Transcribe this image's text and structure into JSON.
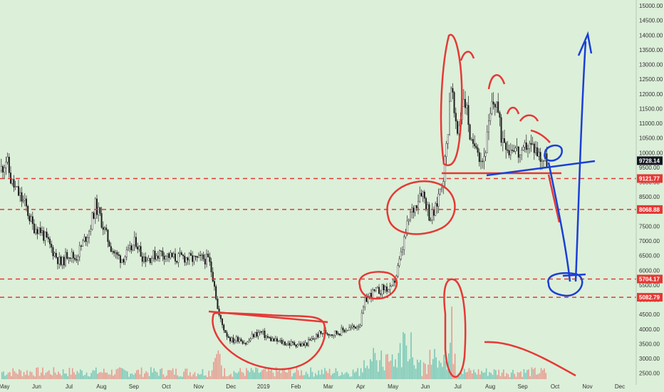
{
  "chart_data": {
    "type": "candlestick",
    "title": "",
    "xlabel": "",
    "ylabel": "",
    "ylim": [
      2200,
      15000
    ],
    "price_axis_ticks": [
      "15000.00",
      "14500.00",
      "14000.00",
      "13500.00",
      "13000.00",
      "12500.00",
      "12000.00",
      "11500.00",
      "11000.00",
      "10500.00",
      "10000.00",
      "9500.00",
      "9000.00",
      "8500.00",
      "8000.00",
      "7500.00",
      "7000.00",
      "6500.00",
      "6000.00",
      "5500.00",
      "5000.00",
      "4500.00",
      "4000.00",
      "3500.00",
      "3000.00",
      "2500.00"
    ],
    "time_axis_ticks": [
      "May",
      "Jun",
      "Jul",
      "Aug",
      "Sep",
      "Oct",
      "Nov",
      "Dec",
      "2019",
      "Feb",
      "Mar",
      "Apr",
      "May",
      "Jun",
      "Jul",
      "Aug",
      "Sep",
      "Oct",
      "Nov",
      "Dec"
    ],
    "current_price": {
      "label": "9728.14",
      "value": 9728.14,
      "color": "#131722"
    },
    "horizontal_levels": [
      {
        "label": "9121.77",
        "value": 9121.77,
        "color": "#e53935"
      },
      {
        "label": "8068.88",
        "value": 8068.88,
        "color": "#e53935"
      },
      {
        "label": "5704.17",
        "value": 5704.17,
        "color": "#e53935"
      },
      {
        "label": "5082.79",
        "value": 5082.79,
        "color": "#e53935"
      }
    ],
    "price_path": [
      [
        0,
        9400
      ],
      [
        8,
        9800
      ],
      [
        15,
        9000
      ],
      [
        25,
        8600
      ],
      [
        35,
        8200
      ],
      [
        45,
        7500
      ],
      [
        55,
        7400
      ],
      [
        65,
        7000
      ],
      [
        75,
        6600
      ],
      [
        85,
        6200
      ],
      [
        95,
        6600
      ],
      [
        105,
        6400
      ],
      [
        115,
        6900
      ],
      [
        125,
        7400
      ],
      [
        133,
        8200
      ],
      [
        140,
        7800
      ],
      [
        148,
        7200
      ],
      [
        155,
        6800
      ],
      [
        162,
        6500
      ],
      [
        170,
        6400
      ],
      [
        180,
        6600
      ],
      [
        190,
        7000
      ],
      [
        198,
        6500
      ],
      [
        206,
        6400
      ],
      [
        215,
        6500
      ],
      [
        225,
        6600
      ],
      [
        235,
        6500
      ],
      [
        245,
        6400
      ],
      [
        255,
        6450
      ],
      [
        265,
        6400
      ],
      [
        275,
        6350
      ],
      [
        285,
        6400
      ],
      [
        292,
        6350
      ],
      [
        300,
        5600
      ],
      [
        305,
        4600
      ],
      [
        310,
        4200
      ],
      [
        318,
        3800
      ],
      [
        325,
        3600
      ],
      [
        335,
        3700
      ],
      [
        345,
        3500
      ],
      [
        355,
        3800
      ],
      [
        365,
        3900
      ],
      [
        375,
        3700
      ],
      [
        385,
        3600
      ],
      [
        395,
        3550
      ],
      [
        405,
        3500
      ],
      [
        415,
        3500
      ],
      [
        425,
        3450
      ],
      [
        435,
        3600
      ],
      [
        445,
        3800
      ],
      [
        455,
        3900
      ],
      [
        465,
        3850
      ],
      [
        475,
        3900
      ],
      [
        485,
        4000
      ],
      [
        495,
        4050
      ],
      [
        505,
        4200
      ],
      [
        512,
        5000
      ],
      [
        520,
        5200
      ],
      [
        530,
        5300
      ],
      [
        540,
        5400
      ],
      [
        548,
        5300
      ],
      [
        555,
        5800
      ],
      [
        562,
        6500
      ],
      [
        568,
        7200
      ],
      [
        575,
        7900
      ],
      [
        582,
        8200
      ],
      [
        590,
        8800
      ],
      [
        596,
        8400
      ],
      [
        603,
        7800
      ],
      [
        610,
        8000
      ],
      [
        617,
        8800
      ],
      [
        622,
        9300
      ],
      [
        627,
        10500
      ],
      [
        632,
        12500
      ],
      [
        636,
        11500
      ],
      [
        640,
        10500
      ],
      [
        645,
        11200
      ],
      [
        650,
        12000
      ],
      [
        656,
        11200
      ],
      [
        662,
        10000
      ],
      [
        668,
        10500
      ],
      [
        673,
        9800
      ],
      [
        678,
        9800
      ],
      [
        683,
        10500
      ],
      [
        690,
        11600
      ],
      [
        696,
        11800
      ],
      [
        702,
        10600
      ],
      [
        708,
        10500
      ],
      [
        714,
        10100
      ],
      [
        720,
        10300
      ],
      [
        726,
        10000
      ],
      [
        732,
        9800
      ],
      [
        738,
        10300
      ],
      [
        744,
        10200
      ],
      [
        750,
        10200
      ],
      [
        756,
        9900
      ],
      [
        762,
        9800
      ],
      [
        767,
        9730
      ]
    ],
    "volume_series": [
      {
        "name": "",
        "color": "#26a69a"
      },
      {
        "name": "",
        "color": "#ef5350"
      }
    ]
  }
}
